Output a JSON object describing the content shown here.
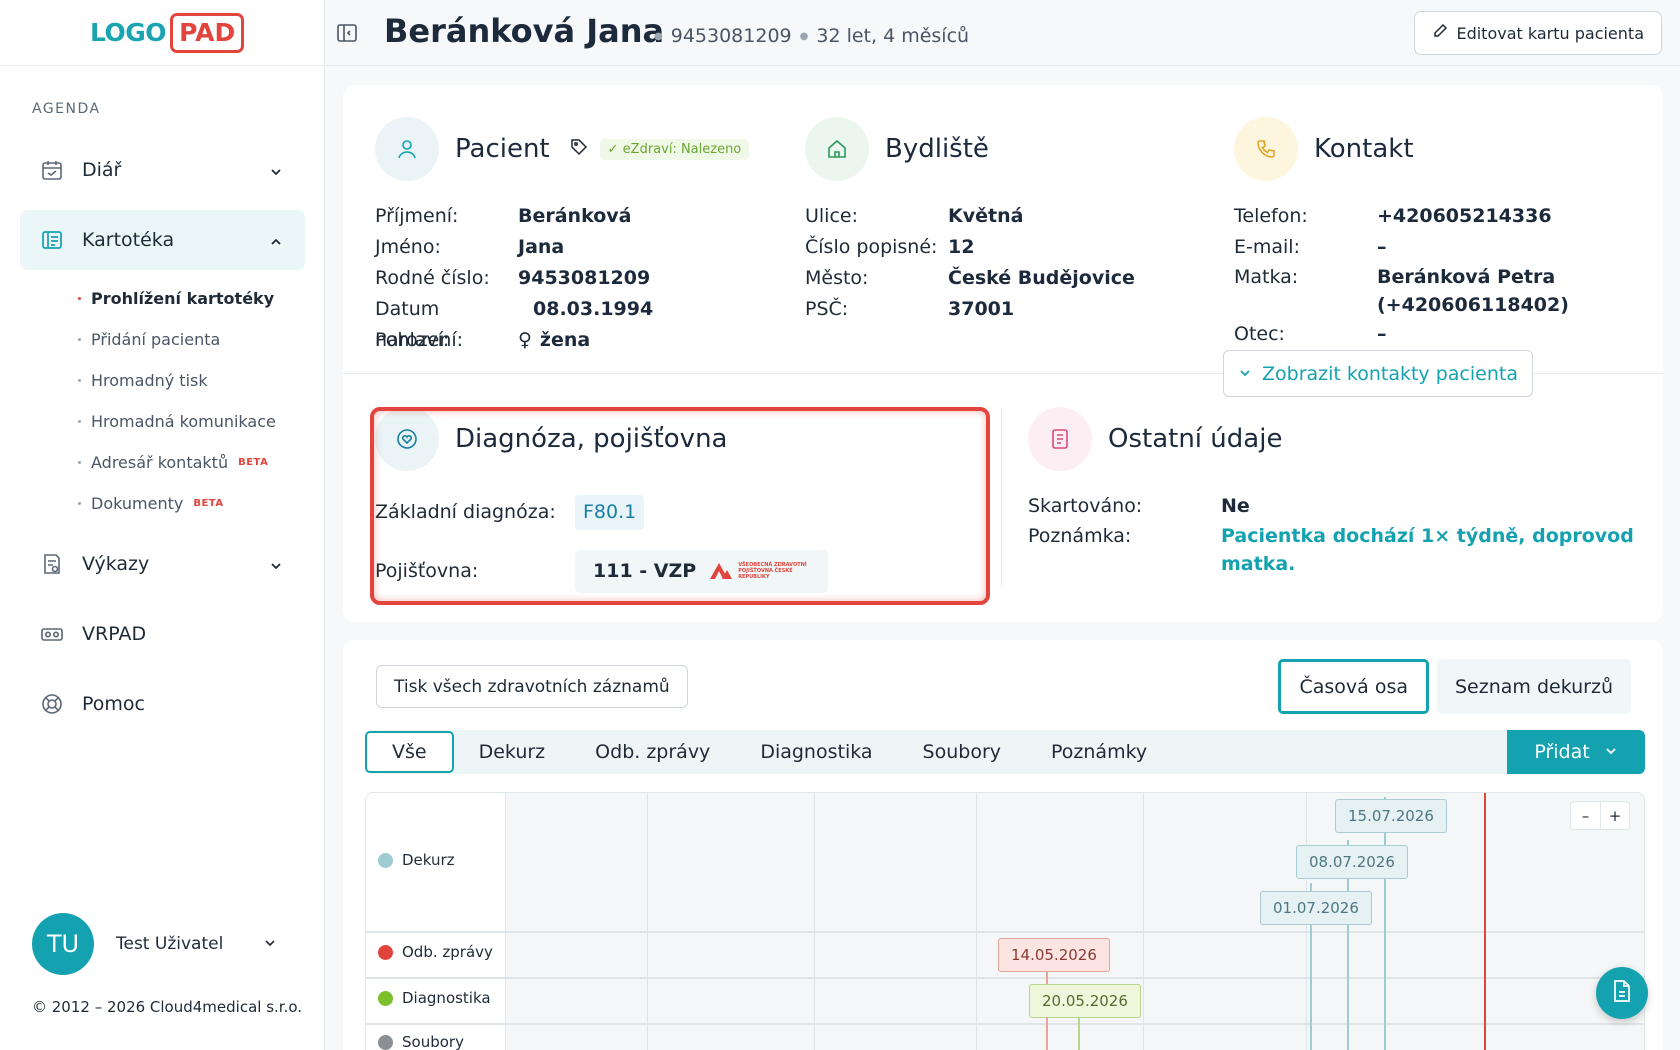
{
  "logo": {
    "left": "LOGO",
    "right": "PAD"
  },
  "sidebar": {
    "section_label": "AGENDA",
    "items": [
      {
        "label": "Diář",
        "icon": "calendar-icon",
        "expanded": false
      },
      {
        "label": "Kartotéka",
        "icon": "card-file-icon",
        "expanded": true
      },
      {
        "label": "Výkazy",
        "icon": "report-icon",
        "expanded": false
      },
      {
        "label": "VRPAD",
        "icon": "vr-headset-icon"
      },
      {
        "label": "Pomoc",
        "icon": "lifebuoy-icon"
      }
    ],
    "kartoteka_sub": [
      {
        "label": "Prohlížení kartotéky",
        "current": true
      },
      {
        "label": "Přidání pacienta"
      },
      {
        "label": "Hromadný tisk"
      },
      {
        "label": "Hromadná komunikace"
      },
      {
        "label": "Adresář kontaktů",
        "badge": "BETA"
      },
      {
        "label": "Dokumenty",
        "badge": "BETA"
      }
    ],
    "user": {
      "initials": "TU",
      "name": "Test Uživatel"
    },
    "copyright": "© 2012 – 2026 Cloud4medical s.r.o."
  },
  "header": {
    "patient_name": "Beránková Jana",
    "birth_number": "9453081209",
    "age": "32 let, 4 měsíců",
    "edit_button": "Editovat kartu pacienta"
  },
  "patient": {
    "title": "Pacient",
    "ezdravi": "✓ eZdraví: Nalezeno",
    "rows": [
      {
        "label": "Příjmení:",
        "value": "Beránková"
      },
      {
        "label": "Jméno:",
        "value": "Jana"
      },
      {
        "label": "Rodné číslo:",
        "value": "9453081209"
      },
      {
        "label": "Datum narození:",
        "value": "08.03.1994"
      },
      {
        "label": "Pohlaví:",
        "value": "žena"
      }
    ]
  },
  "address": {
    "title": "Bydliště",
    "rows": [
      {
        "label": "Ulice:",
        "value": "Květná"
      },
      {
        "label": "Číslo popisné:",
        "value": "12"
      },
      {
        "label": "Město:",
        "value": "České Budějovice"
      },
      {
        "label": "PSČ:",
        "value": "37001"
      }
    ]
  },
  "contact": {
    "title": "Kontakt",
    "rows": [
      {
        "label": "Telefon:",
        "value": "+420605214336"
      },
      {
        "label": "E-mail:",
        "value": "–"
      },
      {
        "label": "Matka:",
        "value": "Beránková Petra",
        "value2": "(+420606118402)"
      },
      {
        "label": "Otec:",
        "value": "–"
      }
    ],
    "show_contacts": "Zobrazit kontakty pacienta"
  },
  "diagnosis": {
    "title": "Diagnóza, pojišťovna",
    "basic_label": "Základní diagnóza:",
    "basic_value": "F80.1",
    "insurance_label": "Pojišťovna:",
    "insurance_value": "111 - VZP",
    "insurance_logo_text": "VŠEOBECNÁ ZDRAVOTNÍ POJIŠŤOVNA ČESKÉ REPUBLIKY"
  },
  "other": {
    "title": "Ostatní údaje",
    "shredded_label": "Skartováno:",
    "shredded_value": "Ne",
    "note_label": "Poznámka:",
    "note_line1": "Pacientka dochází 1× týdně, doprovod",
    "note_line2": "matka."
  },
  "records": {
    "print_all": "Tisk všech zdravotních záznamů",
    "views": [
      "Časová osa",
      "Seznam dekurzů"
    ],
    "tabs": [
      "Vše",
      "Dekurz",
      "Odb. zprávy",
      "Diagnostika",
      "Soubory",
      "Poznámky"
    ],
    "add_button": "Přidat"
  },
  "timeline": {
    "lanes": [
      {
        "label": "Dekurz",
        "color": "#9dccd3"
      },
      {
        "label": "Odb. zprávy",
        "color": "#e0443b"
      },
      {
        "label": "Diagnostika",
        "color": "#7bbf2a"
      },
      {
        "label": "Soubory",
        "color": "#8a8f94"
      }
    ],
    "events": [
      {
        "lane": "Dekurz",
        "date": "15.07.2026"
      },
      {
        "lane": "Dekurz",
        "date": "08.07.2026"
      },
      {
        "lane": "Dekurz",
        "date": "01.07.2026"
      },
      {
        "lane": "Odb. zprávy",
        "date": "14.05.2026"
      },
      {
        "lane": "Diagnostika",
        "date": "20.05.2026"
      }
    ],
    "zoom_out": "–",
    "zoom_in": "+"
  },
  "colors": {
    "accent": "#15a2b0",
    "danger": "#e1453e"
  }
}
